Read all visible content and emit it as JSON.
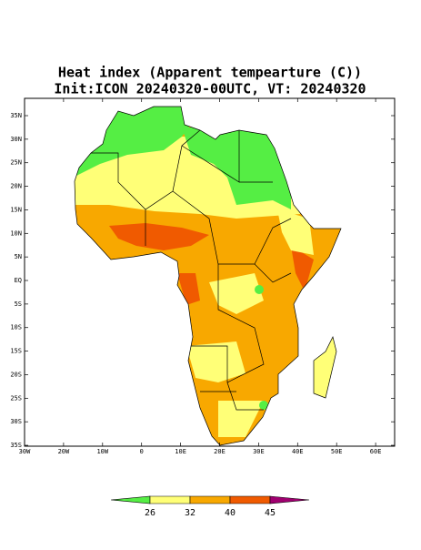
{
  "title": "Heat index (Apparent tempearture (C))",
  "subtitle": "Init:ICON 20240320-00UTC, VT: 20240320",
  "map": {
    "lat_labels": [
      "35N",
      "30N",
      "25N",
      "20N",
      "15N",
      "10N",
      "5N",
      "EQ",
      "5S",
      "10S",
      "15S",
      "20S",
      "25S",
      "30S",
      "35S"
    ],
    "lon_labels": [
      "30W",
      "20W",
      "10W",
      "0",
      "10E",
      "20E",
      "30E",
      "40E",
      "50E",
      "60E"
    ]
  },
  "colorbar": {
    "labels": [
      26,
      32,
      40,
      45
    ],
    "colors": [
      "#55ee44",
      "#ffff77",
      "#f8a800",
      "#f05a00",
      "#a00070"
    ]
  }
}
